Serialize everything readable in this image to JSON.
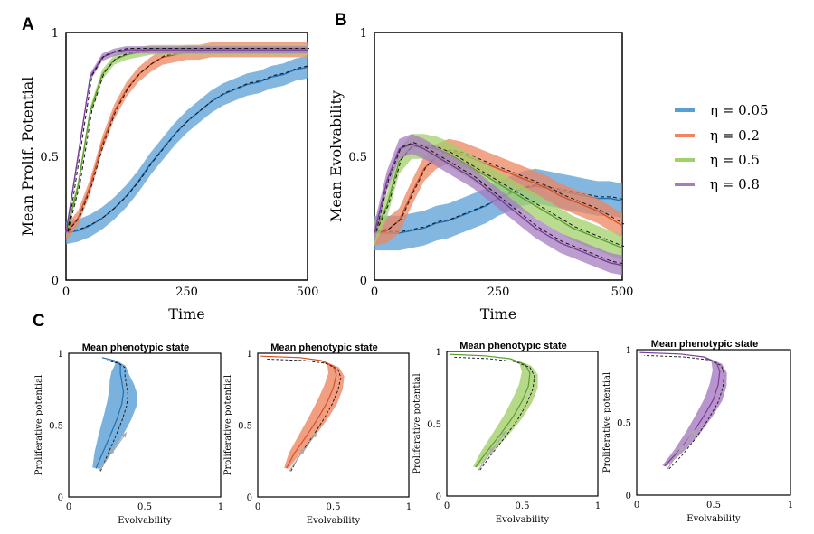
{
  "figure": {
    "panel_labels": [
      "A",
      "B",
      "C"
    ],
    "legend": [
      {
        "label": "η = 0.05",
        "color": "#5a9fd4"
      },
      {
        "label": "η = 0.2",
        "color": "#ee8662"
      },
      {
        "label": "η = 0.5",
        "color": "#a3d06b"
      },
      {
        "label": "η = 0.8",
        "color": "#a67cc0"
      }
    ],
    "line_colors": [
      "#1f6fb5",
      "#d4522a",
      "#5a9e2f",
      "#7a3d99"
    ]
  },
  "chart_data": [
    {
      "panel": "A",
      "type": "line",
      "title": "",
      "xlabel": "Time",
      "ylabel": "Mean Prolif. Potential",
      "xlim": [
        0,
        500
      ],
      "ylim": [
        0,
        1
      ],
      "xticks": [
        "0",
        "250",
        "500"
      ],
      "yticks": [
        "0",
        "0.5",
        "1"
      ],
      "x": [
        0,
        25,
        50,
        75,
        100,
        125,
        150,
        175,
        200,
        225,
        250,
        275,
        300,
        325,
        350,
        375,
        400,
        425,
        450,
        475,
        500
      ],
      "series": [
        {
          "name": "η = 0.05",
          "values": [
            0.19,
            0.2,
            0.22,
            0.25,
            0.29,
            0.34,
            0.4,
            0.47,
            0.53,
            0.59,
            0.64,
            0.68,
            0.72,
            0.75,
            0.77,
            0.79,
            0.8,
            0.82,
            0.83,
            0.85,
            0.86
          ],
          "band": 0.045
        },
        {
          "name": "η = 0.2",
          "values": [
            0.19,
            0.25,
            0.38,
            0.55,
            0.68,
            0.77,
            0.83,
            0.87,
            0.9,
            0.91,
            0.92,
            0.92,
            0.93,
            0.93,
            0.93,
            0.93,
            0.93,
            0.93,
            0.93,
            0.93,
            0.93
          ],
          "band": 0.03
        },
        {
          "name": "η = 0.5",
          "values": [
            0.19,
            0.38,
            0.68,
            0.83,
            0.89,
            0.91,
            0.92,
            0.93,
            0.93,
            0.93,
            0.93,
            0.93,
            0.93,
            0.93,
            0.93,
            0.93,
            0.93,
            0.93,
            0.93,
            0.93,
            0.93
          ],
          "band": 0.02
        },
        {
          "name": "η = 0.8",
          "values": [
            0.19,
            0.5,
            0.82,
            0.9,
            0.92,
            0.93,
            0.93,
            0.93,
            0.93,
            0.93,
            0.93,
            0.93,
            0.93,
            0.93,
            0.93,
            0.93,
            0.93,
            0.93,
            0.93,
            0.93,
            0.93
          ],
          "band": 0.015
        }
      ]
    },
    {
      "panel": "B",
      "type": "line",
      "title": "",
      "xlabel": "Time",
      "ylabel": "Mean Evolvability",
      "xlim": [
        0,
        500
      ],
      "ylim": [
        0,
        1
      ],
      "xticks": [
        "0",
        "250",
        "500"
      ],
      "yticks": [
        "0",
        "0.5",
        "1"
      ],
      "x": [
        0,
        25,
        50,
        75,
        100,
        125,
        150,
        175,
        200,
        225,
        250,
        275,
        300,
        325,
        350,
        375,
        400,
        425,
        450,
        475,
        500
      ],
      "series": [
        {
          "name": "η = 0.05",
          "values": [
            0.19,
            0.19,
            0.19,
            0.2,
            0.21,
            0.23,
            0.24,
            0.26,
            0.28,
            0.3,
            0.33,
            0.35,
            0.37,
            0.38,
            0.37,
            0.36,
            0.35,
            0.34,
            0.33,
            0.33,
            0.32
          ],
          "band": 0.07
        },
        {
          "name": "η = 0.2",
          "values": [
            0.19,
            0.2,
            0.24,
            0.35,
            0.45,
            0.5,
            0.52,
            0.51,
            0.49,
            0.47,
            0.45,
            0.43,
            0.41,
            0.39,
            0.37,
            0.34,
            0.32,
            0.3,
            0.28,
            0.25,
            0.22
          ],
          "band": 0.05
        },
        {
          "name": "η = 0.5",
          "values": [
            0.19,
            0.3,
            0.48,
            0.54,
            0.54,
            0.53,
            0.51,
            0.48,
            0.45,
            0.42,
            0.39,
            0.36,
            0.33,
            0.3,
            0.27,
            0.24,
            0.21,
            0.19,
            0.17,
            0.15,
            0.13
          ],
          "band": 0.05
        },
        {
          "name": "η = 0.8",
          "values": [
            0.19,
            0.4,
            0.53,
            0.55,
            0.53,
            0.5,
            0.47,
            0.44,
            0.41,
            0.37,
            0.33,
            0.29,
            0.25,
            0.21,
            0.18,
            0.15,
            0.13,
            0.11,
            0.09,
            0.07,
            0.06
          ],
          "band": 0.04
        }
      ]
    },
    {
      "panel": "C1",
      "type": "line",
      "title": "Mean phenotypic state",
      "xlabel": "Evolvability",
      "ylabel": "Proliferative potential",
      "xlim": [
        0,
        1
      ],
      "ylim": [
        0,
        1
      ],
      "xticks": [
        "0",
        "0.5",
        "1"
      ],
      "yticks": [
        "0",
        "0.5",
        "1"
      ],
      "series": [
        {
          "name": "η = 0.05",
          "x": [
            0.18,
            0.22,
            0.27,
            0.32,
            0.35,
            0.36,
            0.35,
            0.34,
            0.34,
            0.3,
            0.22
          ],
          "y": [
            0.2,
            0.3,
            0.42,
            0.55,
            0.65,
            0.73,
            0.8,
            0.86,
            0.92,
            0.95,
            0.97
          ],
          "band": 0.06
        }
      ]
    },
    {
      "panel": "C2",
      "type": "line",
      "title": "Mean phenotypic state",
      "xlabel": "Evolvability",
      "ylabel": "Proliferative potential",
      "xlim": [
        0,
        1
      ],
      "ylim": [
        0,
        1
      ],
      "xticks": [
        "0",
        "0.5",
        "1"
      ],
      "yticks": [
        "0",
        "0.5",
        "1"
      ],
      "series": [
        {
          "name": "η = 0.2",
          "x": [
            0.19,
            0.24,
            0.32,
            0.4,
            0.46,
            0.5,
            0.52,
            0.5,
            0.42,
            0.28,
            0.02
          ],
          "y": [
            0.2,
            0.3,
            0.42,
            0.55,
            0.66,
            0.76,
            0.85,
            0.91,
            0.95,
            0.97,
            0.98
          ],
          "band": 0.04
        }
      ]
    },
    {
      "panel": "C3",
      "type": "line",
      "title": "Mean phenotypic state",
      "xlabel": "Evolvability",
      "ylabel": "Proliferative potential",
      "xlim": [
        0,
        1
      ],
      "ylim": [
        0,
        1
      ],
      "xticks": [
        "0",
        "0.5",
        "1"
      ],
      "yticks": [
        "0",
        "0.5",
        "1"
      ],
      "series": [
        {
          "name": "η = 0.5",
          "x": [
            0.19,
            0.26,
            0.35,
            0.44,
            0.5,
            0.54,
            0.55,
            0.52,
            0.42,
            0.25,
            0.02
          ],
          "y": [
            0.2,
            0.3,
            0.42,
            0.55,
            0.66,
            0.76,
            0.85,
            0.91,
            0.95,
            0.97,
            0.98
          ],
          "band": 0.04
        }
      ]
    },
    {
      "panel": "C4",
      "type": "line",
      "title": "Mean phenotypic state",
      "xlabel": "Evolvability",
      "ylabel": "Proliferative potential",
      "xlim": [
        0,
        1
      ],
      "ylim": [
        0,
        1
      ],
      "xticks": [
        "0",
        "0.5",
        "1"
      ],
      "yticks": [
        "0",
        "0.5",
        "1"
      ],
      "series": [
        {
          "name": "η = 0.8",
          "x": [
            0.18,
            0.27,
            0.36,
            0.44,
            0.5,
            0.53,
            0.54,
            0.52,
            0.44,
            0.28,
            0.02
          ],
          "y": [
            0.2,
            0.3,
            0.42,
            0.55,
            0.66,
            0.76,
            0.85,
            0.91,
            0.95,
            0.97,
            0.98
          ],
          "band": 0.035
        }
      ]
    }
  ]
}
